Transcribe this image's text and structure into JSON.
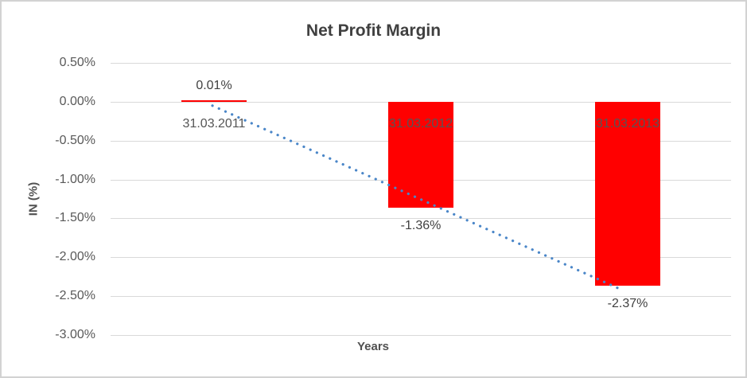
{
  "chart_data": {
    "type": "bar",
    "title": "Net Profit Margin",
    "xlabel": "Years",
    "ylabel": "IN (%)",
    "categories": [
      "31.03.2011",
      "31.03.2012",
      "31.03.2013"
    ],
    "values": [
      0.01,
      -1.36,
      -2.37
    ],
    "value_labels": [
      "0.01%",
      "-1.36%",
      "-2.37%"
    ],
    "unit": "percent",
    "ylim": [
      -3.0,
      0.5
    ],
    "ytick_step": 0.5,
    "yticks": [
      {
        "value": 0.5,
        "label": "0.50%"
      },
      {
        "value": 0.0,
        "label": "0.00%"
      },
      {
        "value": -0.5,
        "label": "-0.50%"
      },
      {
        "value": -1.0,
        "label": "-1.00%"
      },
      {
        "value": -1.5,
        "label": "-1.50%"
      },
      {
        "value": -2.0,
        "label": "-2.00%"
      },
      {
        "value": -2.5,
        "label": "-2.50%"
      },
      {
        "value": -3.0,
        "label": "-3.00%"
      }
    ],
    "gridlines": true,
    "legend": "none",
    "bar_color": "#FF0000",
    "trendline": {
      "type": "linear",
      "style": "dotted",
      "color": "#4A86C8",
      "start": {
        "category_index": 0,
        "value": -0.05
      },
      "end": {
        "category_index": 2,
        "value": -2.43
      }
    }
  },
  "colors": {
    "background": "#FFFFFF",
    "border": "#D2D2D2",
    "grid": "#D9D9D9",
    "title_text": "#404040",
    "tick_text": "#595959",
    "category_text": "#555555",
    "data_label_text": "#404040",
    "axis_title_text": "#515151"
  }
}
